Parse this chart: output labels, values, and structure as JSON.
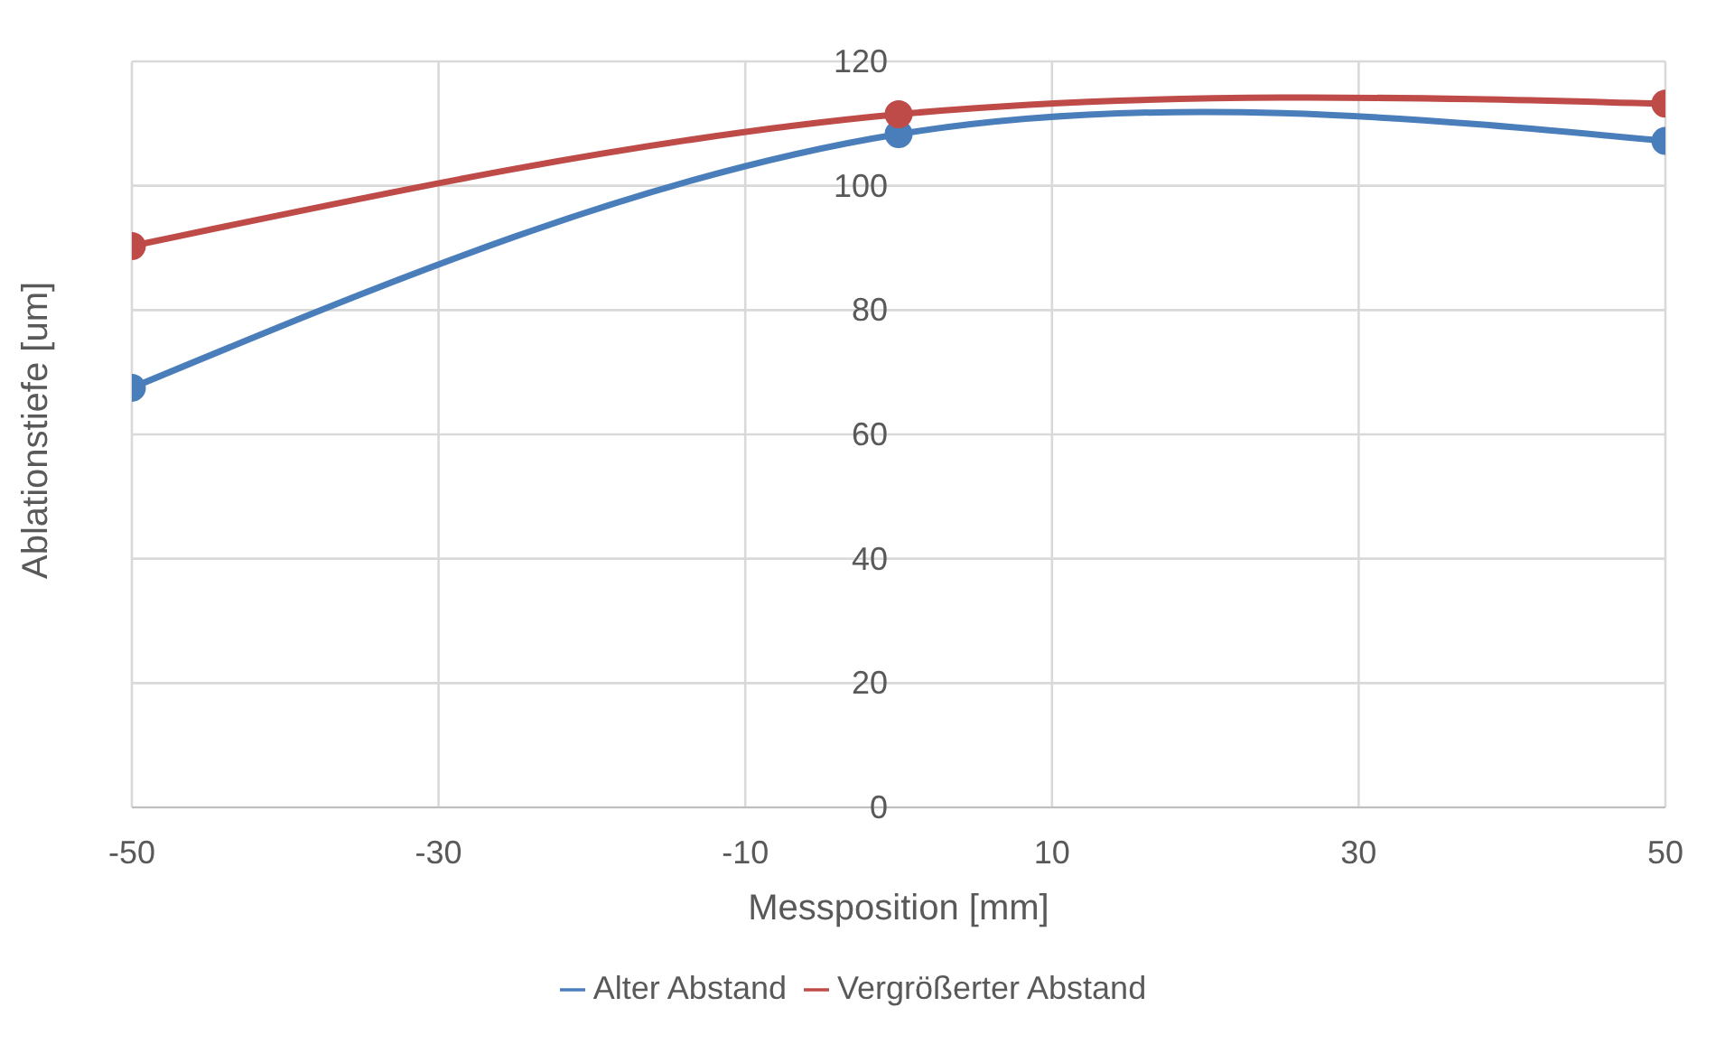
{
  "chart_data": {
    "type": "line",
    "xlabel": "Messposition [mm]",
    "ylabel": "Ablationstiefe [um]",
    "x": [
      -50,
      0,
      50
    ],
    "series": [
      {
        "name": "Alter Abstand",
        "color": "#4a7ebb",
        "values": [
          67.5,
          108.3,
          107.2
        ]
      },
      {
        "name": "Vergrößerter Abstand",
        "color": "#be4b48",
        "values": [
          90.3,
          111.5,
          113.2
        ]
      }
    ],
    "xlim": [
      -50,
      50
    ],
    "xticks": [
      -50,
      -30,
      -10,
      10,
      30,
      50
    ],
    "ylim": [
      0,
      120
    ],
    "yticks": [
      0,
      20,
      40,
      60,
      80,
      100,
      120
    ],
    "grid": true,
    "legend": "bottom",
    "marker": "circle",
    "line_style": "solid"
  }
}
